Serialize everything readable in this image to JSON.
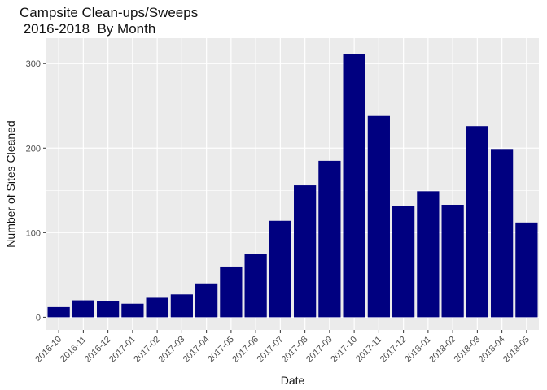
{
  "chart_data": {
    "type": "bar",
    "title": "Campsite Clean-ups/Sweeps\n 2016-2018  By Month",
    "xlabel": "Date",
    "ylabel": "Number of Sites Cleaned",
    "categories": [
      "2016-10",
      "2016-11",
      "2016-12",
      "2017-01",
      "2017-02",
      "2017-03",
      "2017-04",
      "2017-05",
      "2017-06",
      "2017-07",
      "2017-08",
      "2017-09",
      "2017-10",
      "2017-11",
      "2017-12",
      "2018-01",
      "2018-02",
      "2018-03",
      "2018-04",
      "2018-05"
    ],
    "values": [
      12,
      20,
      19,
      16,
      23,
      27,
      40,
      60,
      75,
      114,
      156,
      185,
      311,
      238,
      132,
      149,
      133,
      226,
      199,
      112
    ],
    "ylim": [
      -15,
      330
    ],
    "yticks": [
      0,
      100,
      200,
      300
    ],
    "grid": true,
    "bar_color": "#000080",
    "panel_background": "#ebebeb"
  }
}
